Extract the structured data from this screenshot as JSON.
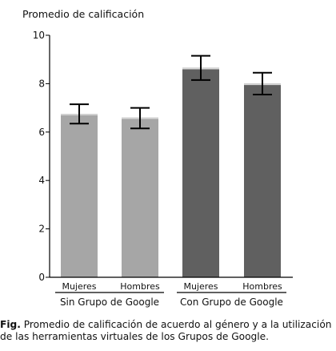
{
  "chart_data": {
    "type": "bar",
    "ylabel": "Promedio de calificación",
    "ylim": [
      0,
      10
    ],
    "yticks": [
      0,
      2,
      4,
      6,
      8,
      10
    ],
    "categories": [
      "Mujeres",
      "Hombres",
      "Mujeres",
      "Hombres"
    ],
    "groups": [
      {
        "label": "Sin Grupo de Google",
        "indices": [
          0,
          1
        ]
      },
      {
        "label": "Con Grupo de Google",
        "indices": [
          2,
          3
        ]
      }
    ],
    "values": [
      6.75,
      6.6,
      8.65,
      8.0
    ],
    "error_low": [
      6.35,
      6.15,
      8.15,
      7.55
    ],
    "error_high": [
      7.15,
      7.0,
      9.15,
      8.45
    ],
    "colors": [
      "#a6a6a6",
      "#a6a6a6",
      "#606060",
      "#606060"
    ],
    "grid": false
  },
  "caption": {
    "prefix": "Fig.",
    "text": " Promedio de calificación de acuerdo al género y a la utilización de las herramientas virtuales de los Grupos de Google."
  }
}
